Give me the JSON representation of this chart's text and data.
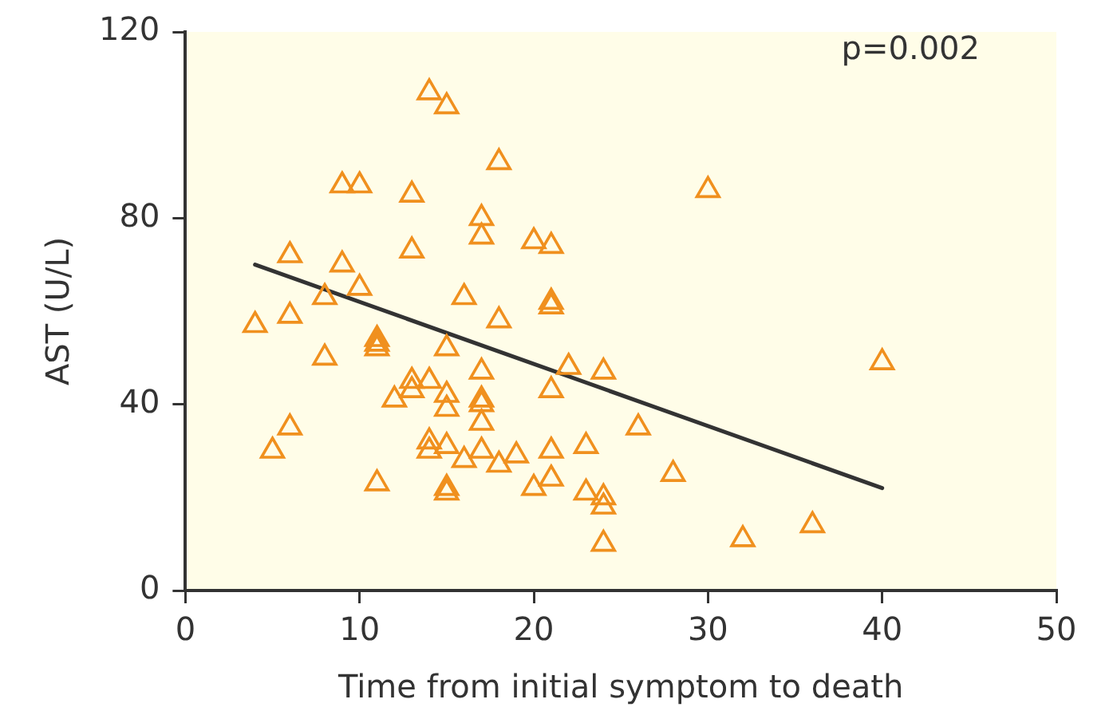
{
  "chart_data": {
    "type": "scatter",
    "xlabel": "Time from initial symptom to death",
    "ylabel": "AST (U/L)",
    "xlim": [
      0,
      50
    ],
    "xticks": [
      0,
      10,
      20,
      30,
      40,
      50
    ],
    "ylim": [
      0,
      120
    ],
    "yticks": [
      0,
      40,
      80,
      120
    ],
    "grid": false,
    "legend": false,
    "marker": "triangle",
    "annotations": [
      "p=0.002"
    ],
    "series": [
      {
        "color": "#f0901e",
        "x": [
          4,
          5,
          6,
          6,
          6,
          8,
          8,
          9,
          9,
          10,
          10,
          11,
          11,
          11,
          11,
          12,
          13,
          13,
          13,
          13,
          14,
          14,
          14,
          14,
          15,
          15,
          15,
          15,
          15,
          15,
          15,
          16,
          16,
          17,
          17,
          17,
          17,
          17,
          17,
          17,
          18,
          18,
          18,
          19,
          20,
          20,
          21,
          21,
          21,
          21,
          21,
          21,
          22,
          23,
          23,
          24,
          24,
          24,
          24,
          26,
          28,
          30,
          32,
          36,
          40
        ],
        "values": [
          57,
          30,
          72,
          59,
          35,
          63,
          50,
          87,
          70,
          87,
          65,
          54,
          53,
          52,
          23,
          41,
          85,
          73,
          45,
          43,
          107,
          45,
          32,
          30,
          104,
          52,
          42,
          39,
          31,
          22,
          21,
          63,
          28,
          80,
          76,
          47,
          41,
          40,
          36,
          30,
          92,
          58,
          27,
          29,
          75,
          22,
          74,
          62,
          61,
          43,
          30,
          24,
          48,
          31,
          21,
          47,
          20,
          18,
          10,
          35,
          25,
          86,
          11,
          14,
          49
        ]
      },
      {
        "type": "line",
        "color": "#333333",
        "marker": "none",
        "x": [
          4,
          40
        ],
        "values": [
          70,
          22
        ]
      }
    ]
  }
}
